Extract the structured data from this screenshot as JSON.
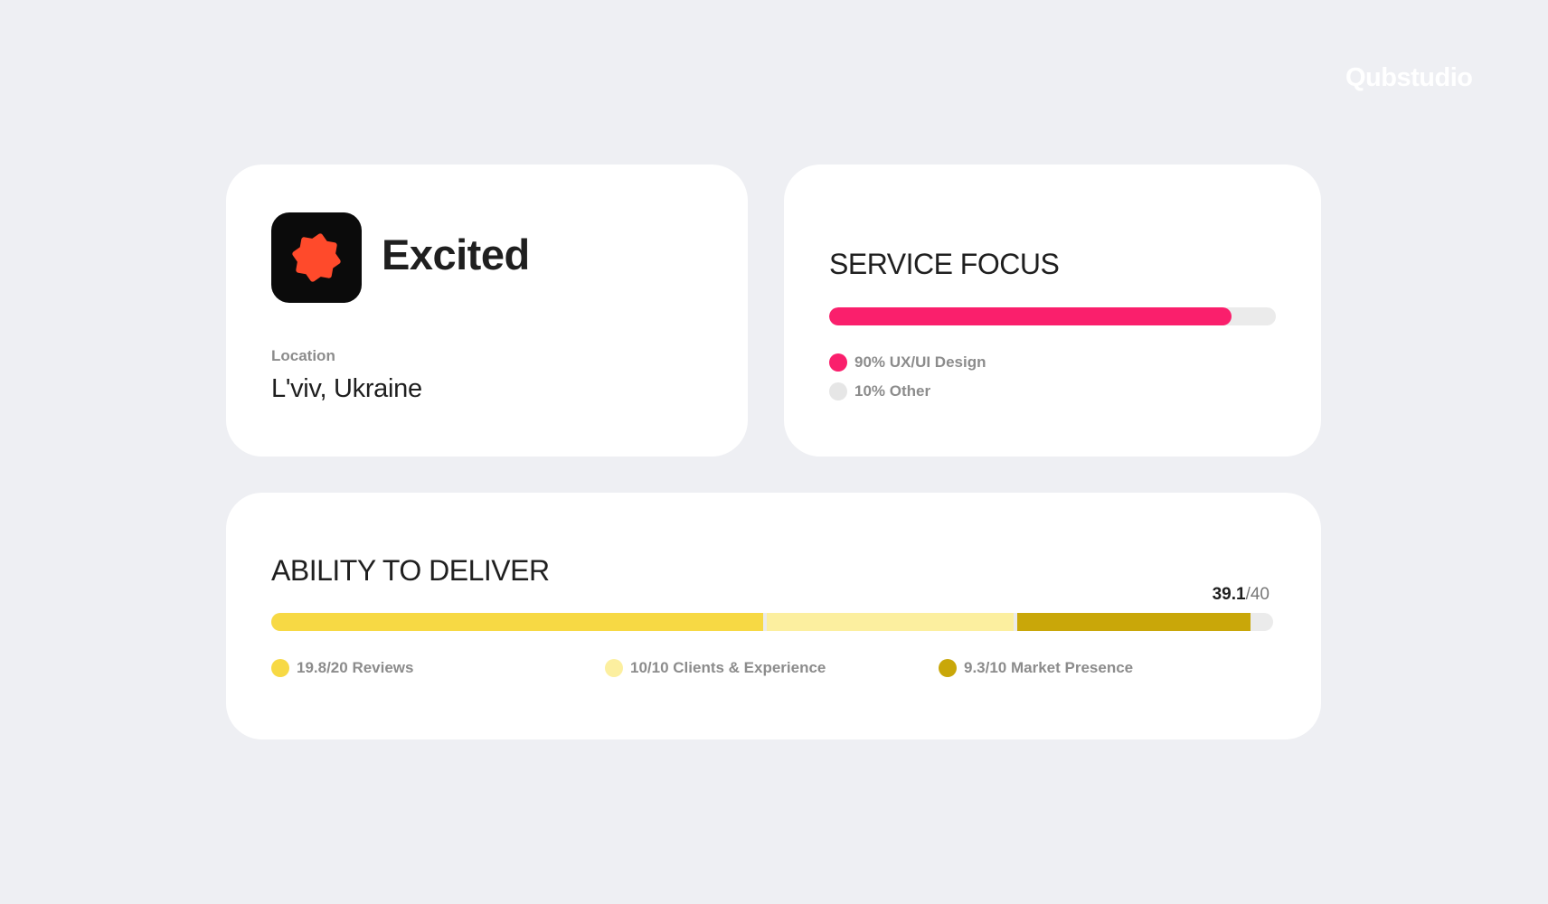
{
  "brand": {
    "logo_text": "Qubstudio"
  },
  "profile": {
    "company_name": "Excited",
    "logo_icon": "starburst-icon",
    "logo_bg_color": "#0b0b0b",
    "logo_icon_color": "#ff4a2b",
    "location_label": "Location",
    "location_value": "L'viv, Ukraine"
  },
  "service_focus": {
    "title": "SERVICE FOCUS",
    "items": [
      {
        "label": "90% UX/UI Design",
        "percent": 90,
        "color": "#fa1f6c"
      },
      {
        "label": "10% Other",
        "percent": 10,
        "color": "#e6e6e6"
      }
    ]
  },
  "ability_to_deliver": {
    "title": "ABILITY TO DELIVER",
    "score_value": "39.1",
    "score_max": "/40",
    "total": 40,
    "segments": [
      {
        "label": "19.8/20 Reviews",
        "value": 19.8,
        "color": "#f7d944"
      },
      {
        "label": "10/10 Clients & Experience",
        "value": 10,
        "color": "#fcef9f"
      },
      {
        "label": "9.3/10 Market Presence",
        "value": 9.3,
        "color": "#c9a709"
      }
    ]
  }
}
